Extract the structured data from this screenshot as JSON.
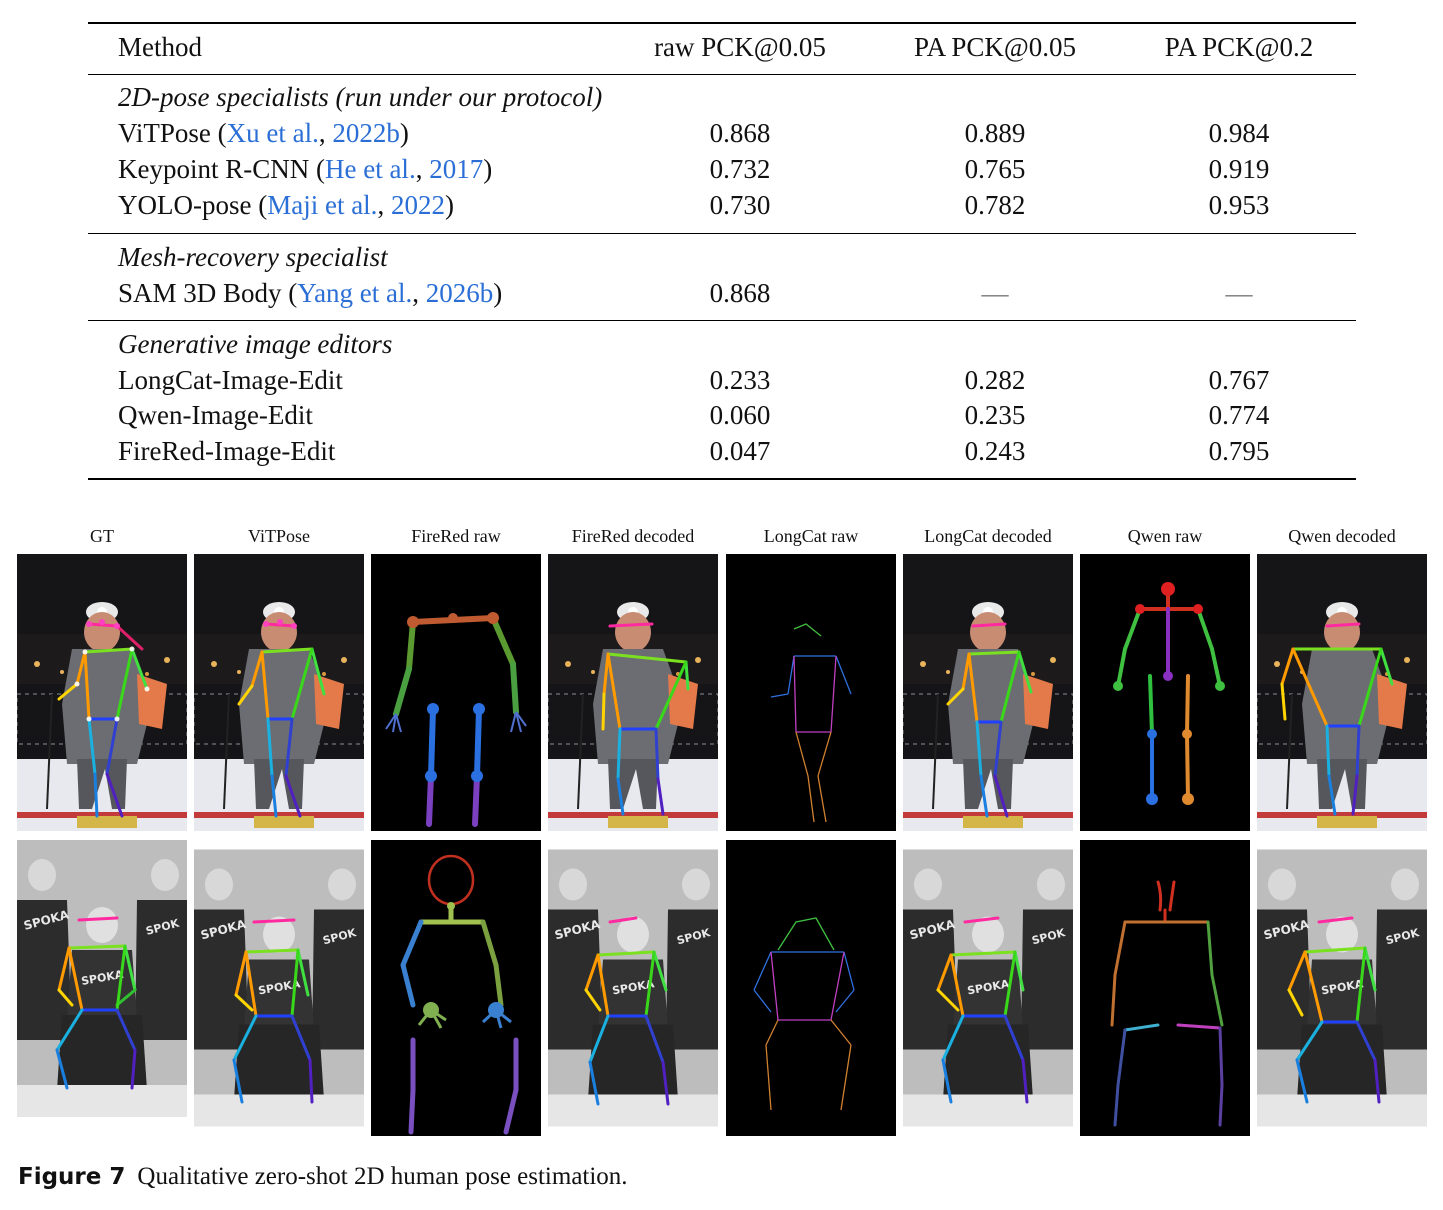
{
  "table": {
    "headers": [
      "Method",
      "raw PCK@0.05",
      "PA PCK@0.05",
      "PA PCK@0.2"
    ],
    "groups": [
      {
        "title": "2D-pose specialists (run under our protocol)",
        "rows": [
          {
            "method": "ViTPose (",
            "cite_a": "Xu et al.",
            "sep": ", ",
            "cite_b": "2022b",
            "close": ")",
            "v": [
              "0.868",
              "0.889",
              "0.984"
            ]
          },
          {
            "method": "Keypoint R-CNN (",
            "cite_a": "He et al.",
            "sep": ", ",
            "cite_b": "2017",
            "close": ")",
            "v": [
              "0.732",
              "0.765",
              "0.919"
            ]
          },
          {
            "method": "YOLO-pose (",
            "cite_a": "Maji et al.",
            "sep": ", ",
            "cite_b": "2022",
            "close": ")",
            "v": [
              "0.730",
              "0.782",
              "0.953"
            ]
          }
        ]
      },
      {
        "title": "Mesh-recovery specialist",
        "rows": [
          {
            "method": "SAM 3D Body (",
            "cite_a": "Yang et al.",
            "sep": ", ",
            "cite_b": "2026b",
            "close": ")",
            "v": [
              "0.868",
              "—",
              "—"
            ]
          }
        ]
      },
      {
        "title": "Generative image editors",
        "rows": [
          {
            "method": "LongCat-Image-Edit",
            "v": [
              "0.233",
              "0.282",
              "0.767"
            ]
          },
          {
            "method": "Qwen-Image-Edit",
            "v": [
              "0.060",
              "0.235",
              "0.774"
            ]
          },
          {
            "method": "FireRed-Image-Edit",
            "v": [
              "0.047",
              "0.243",
              "0.795"
            ]
          }
        ]
      }
    ]
  },
  "figure": {
    "columns": [
      "GT",
      "ViTPose",
      "FireRed raw",
      "FireRed decoded",
      "LongCat raw",
      "LongCat decoded",
      "Qwen raw",
      "Qwen decoded"
    ],
    "caption_label": "Figure 7",
    "caption_text": "Qualitative zero-shot 2D human pose estimation."
  }
}
